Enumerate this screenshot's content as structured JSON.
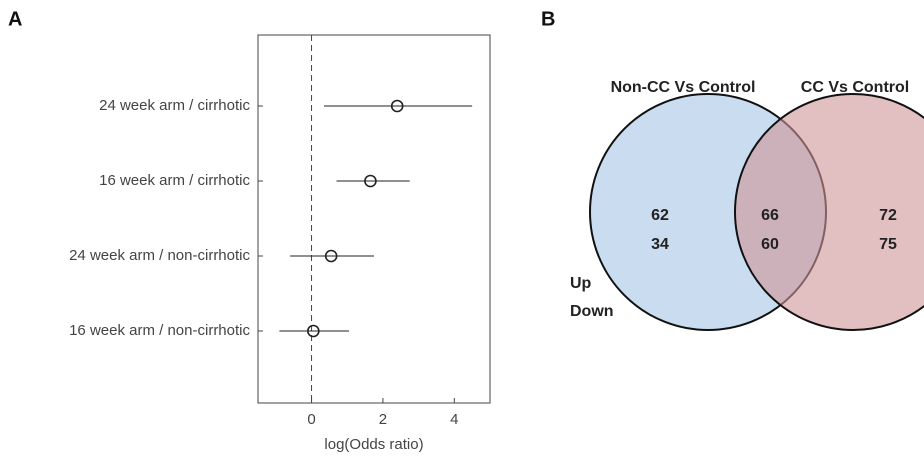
{
  "chart_data": [
    {
      "type": "forest",
      "panel_label": "A",
      "categories": [
        "24 week arm / cirrhotic",
        "16 week arm / cirrhotic",
        "24 week arm / non-cirrhotic",
        "16 week arm / non-cirrhotic"
      ],
      "values": [
        2.4,
        1.65,
        0.55,
        0.05
      ],
      "lower": [
        0.35,
        0.7,
        -0.6,
        -0.9
      ],
      "upper": [
        4.5,
        2.75,
        1.75,
        1.05
      ],
      "xlim": [
        -1.5,
        5
      ],
      "xticks": [
        0,
        2,
        4
      ],
      "xlabel": "log(Odds ratio)",
      "reference_line": 0,
      "color": "#222222"
    },
    {
      "type": "venn",
      "panel_label": "B",
      "sets": [
        {
          "name": "Non-CC Vs Control",
          "color": "#c9dcf0"
        },
        {
          "name": "CC Vs Control",
          "color": "#cf9496"
        }
      ],
      "row_labels": [
        "Up",
        "Down"
      ],
      "regions": [
        {
          "values": [
            62,
            34
          ]
        },
        {
          "values": [
            66,
            60
          ]
        },
        {
          "values": [
            72,
            75
          ]
        }
      ]
    }
  ]
}
